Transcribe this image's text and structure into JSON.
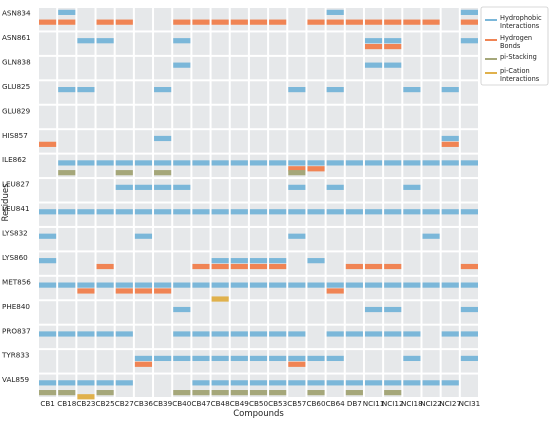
{
  "chart_data": {
    "type": "heatmap",
    "title": "",
    "xlabel": "Compounds",
    "ylabel": "Residues",
    "grid": true,
    "legend_placement": "top-right",
    "compounds": [
      "CB1",
      "CB18",
      "CB23",
      "CB25",
      "CB27",
      "CB36",
      "CB39",
      "CB40",
      "CB47",
      "CB48",
      "CB49",
      "CB50",
      "CB53",
      "CB57",
      "CB60",
      "CB64",
      "DB7",
      "NCI11",
      "NCI12",
      "NCI18",
      "NCI22",
      "NCI27",
      "NCI31"
    ],
    "residues": [
      "ASN834",
      "ASN861",
      "GLN838",
      "GLU825",
      "GLU829",
      "HIS857",
      "ILE862",
      "LEU827",
      "LEU841",
      "LYS832",
      "LYS860",
      "MET856",
      "PHE840",
      "PRO837",
      "TYR833",
      "VAL859"
    ],
    "interaction_types": [
      {
        "name": "Hydrophobic\nInteractions",
        "color": "#7bb7d9"
      },
      {
        "name": "Hydrogen\nBonds",
        "color": "#f08454"
      },
      {
        "name": "pi-Stacking",
        "color": "#a5a77a"
      },
      {
        "name": "pi-Cation\nInteractions",
        "color": "#e0b14c"
      }
    ],
    "series": [
      {
        "name": "Hydrophobic",
        "points": [
          [
            "CB18",
            "ASN834"
          ],
          [
            "CB64",
            "ASN834"
          ],
          [
            "NCI31",
            "ASN834"
          ],
          [
            "CB23",
            "ASN861"
          ],
          [
            "CB25",
            "ASN861"
          ],
          [
            "CB40",
            "ASN861"
          ],
          [
            "NCI11",
            "ASN861"
          ],
          [
            "NCI12",
            "ASN861"
          ],
          [
            "NCI31",
            "ASN861"
          ],
          [
            "CB40",
            "GLN838"
          ],
          [
            "NCI11",
            "GLN838"
          ],
          [
            "NCI12",
            "GLN838"
          ],
          [
            "CB18",
            "GLU825"
          ],
          [
            "CB23",
            "GLU825"
          ],
          [
            "CB39",
            "GLU825"
          ],
          [
            "CB57",
            "GLU825"
          ],
          [
            "CB64",
            "GLU825"
          ],
          [
            "NCI18",
            "GLU825"
          ],
          [
            "NCI27",
            "GLU825"
          ],
          [
            "CB39",
            "HIS857"
          ],
          [
            "NCI27",
            "HIS857"
          ],
          [
            "CB18",
            "ILE862"
          ],
          [
            "CB23",
            "ILE862"
          ],
          [
            "CB25",
            "ILE862"
          ],
          [
            "CB27",
            "ILE862"
          ],
          [
            "CB36",
            "ILE862"
          ],
          [
            "CB39",
            "ILE862"
          ],
          [
            "CB40",
            "ILE862"
          ],
          [
            "CB47",
            "ILE862"
          ],
          [
            "CB48",
            "ILE862"
          ],
          [
            "CB49",
            "ILE862"
          ],
          [
            "CB50",
            "ILE862"
          ],
          [
            "CB53",
            "ILE862"
          ],
          [
            "CB57",
            "ILE862"
          ],
          [
            "CB60",
            "ILE862"
          ],
          [
            "CB64",
            "ILE862"
          ],
          [
            "DB7",
            "ILE862"
          ],
          [
            "NCI11",
            "ILE862"
          ],
          [
            "NCI12",
            "ILE862"
          ],
          [
            "NCI18",
            "ILE862"
          ],
          [
            "NCI22",
            "ILE862"
          ],
          [
            "NCI27",
            "ILE862"
          ],
          [
            "NCI31",
            "ILE862"
          ],
          [
            "CB27",
            "LEU827"
          ],
          [
            "CB36",
            "LEU827"
          ],
          [
            "CB39",
            "LEU827"
          ],
          [
            "CB40",
            "LEU827"
          ],
          [
            "CB57",
            "LEU827"
          ],
          [
            "CB64",
            "LEU827"
          ],
          [
            "NCI18",
            "LEU827"
          ],
          [
            "CB1",
            "LEU841"
          ],
          [
            "CB18",
            "LEU841"
          ],
          [
            "CB23",
            "LEU841"
          ],
          [
            "CB25",
            "LEU841"
          ],
          [
            "CB27",
            "LEU841"
          ],
          [
            "CB36",
            "LEU841"
          ],
          [
            "CB39",
            "LEU841"
          ],
          [
            "CB40",
            "LEU841"
          ],
          [
            "CB47",
            "LEU841"
          ],
          [
            "CB48",
            "LEU841"
          ],
          [
            "CB49",
            "LEU841"
          ],
          [
            "CB50",
            "LEU841"
          ],
          [
            "CB53",
            "LEU841"
          ],
          [
            "CB57",
            "LEU841"
          ],
          [
            "CB60",
            "LEU841"
          ],
          [
            "CB64",
            "LEU841"
          ],
          [
            "DB7",
            "LEU841"
          ],
          [
            "NCI11",
            "LEU841"
          ],
          [
            "NCI12",
            "LEU841"
          ],
          [
            "NCI18",
            "LEU841"
          ],
          [
            "NCI22",
            "LEU841"
          ],
          [
            "NCI27",
            "LEU841"
          ],
          [
            "NCI31",
            "LEU841"
          ],
          [
            "CB1",
            "LYS832"
          ],
          [
            "CB36",
            "LYS832"
          ],
          [
            "CB57",
            "LYS832"
          ],
          [
            "NCI22",
            "LYS832"
          ],
          [
            "CB1",
            "LYS860"
          ],
          [
            "CB48",
            "LYS860"
          ],
          [
            "CB49",
            "LYS860"
          ],
          [
            "CB50",
            "LYS860"
          ],
          [
            "CB53",
            "LYS860"
          ],
          [
            "CB60",
            "LYS860"
          ],
          [
            "CB1",
            "MET856"
          ],
          [
            "CB18",
            "MET856"
          ],
          [
            "CB23",
            "MET856"
          ],
          [
            "CB25",
            "MET856"
          ],
          [
            "CB27",
            "MET856"
          ],
          [
            "CB36",
            "MET856"
          ],
          [
            "CB39",
            "MET856"
          ],
          [
            "CB40",
            "MET856"
          ],
          [
            "CB47",
            "MET856"
          ],
          [
            "CB48",
            "MET856"
          ],
          [
            "CB49",
            "MET856"
          ],
          [
            "CB50",
            "MET856"
          ],
          [
            "CB53",
            "MET856"
          ],
          [
            "CB57",
            "MET856"
          ],
          [
            "CB60",
            "MET856"
          ],
          [
            "CB64",
            "MET856"
          ],
          [
            "DB7",
            "MET856"
          ],
          [
            "NCI11",
            "MET856"
          ],
          [
            "NCI12",
            "MET856"
          ],
          [
            "NCI18",
            "MET856"
          ],
          [
            "NCI22",
            "MET856"
          ],
          [
            "NCI27",
            "MET856"
          ],
          [
            "NCI31",
            "MET856"
          ],
          [
            "CB40",
            "PHE840"
          ],
          [
            "NCI11",
            "PHE840"
          ],
          [
            "NCI12",
            "PHE840"
          ],
          [
            "NCI31",
            "PHE840"
          ],
          [
            "CB1",
            "PRO837"
          ],
          [
            "CB18",
            "PRO837"
          ],
          [
            "CB23",
            "PRO837"
          ],
          [
            "CB25",
            "PRO837"
          ],
          [
            "CB27",
            "PRO837"
          ],
          [
            "CB40",
            "PRO837"
          ],
          [
            "CB47",
            "PRO837"
          ],
          [
            "CB48",
            "PRO837"
          ],
          [
            "CB49",
            "PRO837"
          ],
          [
            "CB50",
            "PRO837"
          ],
          [
            "CB53",
            "PRO837"
          ],
          [
            "CB57",
            "PRO837"
          ],
          [
            "CB64",
            "PRO837"
          ],
          [
            "DB7",
            "PRO837"
          ],
          [
            "NCI11",
            "PRO837"
          ],
          [
            "NCI12",
            "PRO837"
          ],
          [
            "NCI18",
            "PRO837"
          ],
          [
            "NCI27",
            "PRO837"
          ],
          [
            "NCI31",
            "PRO837"
          ],
          [
            "CB36",
            "TYR833"
          ],
          [
            "CB39",
            "TYR833"
          ],
          [
            "CB40",
            "TYR833"
          ],
          [
            "CB47",
            "TYR833"
          ],
          [
            "CB48",
            "TYR833"
          ],
          [
            "CB49",
            "TYR833"
          ],
          [
            "CB50",
            "TYR833"
          ],
          [
            "CB53",
            "TYR833"
          ],
          [
            "CB57",
            "TYR833"
          ],
          [
            "CB60",
            "TYR833"
          ],
          [
            "CB64",
            "TYR833"
          ],
          [
            "NCI18",
            "TYR833"
          ],
          [
            "NCI31",
            "TYR833"
          ],
          [
            "CB1",
            "VAL859"
          ],
          [
            "CB18",
            "VAL859"
          ],
          [
            "CB23",
            "VAL859"
          ],
          [
            "CB25",
            "VAL859"
          ],
          [
            "CB27",
            "VAL859"
          ],
          [
            "CB47",
            "VAL859"
          ],
          [
            "CB48",
            "VAL859"
          ],
          [
            "CB49",
            "VAL859"
          ],
          [
            "CB50",
            "VAL859"
          ],
          [
            "CB53",
            "VAL859"
          ],
          [
            "CB57",
            "VAL859"
          ],
          [
            "CB60",
            "VAL859"
          ],
          [
            "CB64",
            "VAL859"
          ],
          [
            "DB7",
            "VAL859"
          ],
          [
            "NCI11",
            "VAL859"
          ],
          [
            "NCI12",
            "VAL859"
          ],
          [
            "NCI18",
            "VAL859"
          ],
          [
            "NCI22",
            "VAL859"
          ],
          [
            "NCI27",
            "VAL859"
          ]
        ]
      },
      {
        "name": "Hydrogen Bonds",
        "points": [
          [
            "CB1",
            "ASN834"
          ],
          [
            "CB18",
            "ASN834"
          ],
          [
            "CB25",
            "ASN834"
          ],
          [
            "CB27",
            "ASN834"
          ],
          [
            "CB40",
            "ASN834"
          ],
          [
            "CB47",
            "ASN834"
          ],
          [
            "CB48",
            "ASN834"
          ],
          [
            "CB49",
            "ASN834"
          ],
          [
            "CB50",
            "ASN834"
          ],
          [
            "CB53",
            "ASN834"
          ],
          [
            "CB60",
            "ASN834"
          ],
          [
            "CB64",
            "ASN834"
          ],
          [
            "DB7",
            "ASN834"
          ],
          [
            "NCI11",
            "ASN834"
          ],
          [
            "NCI12",
            "ASN834"
          ],
          [
            "NCI18",
            "ASN834"
          ],
          [
            "NCI22",
            "ASN834"
          ],
          [
            "NCI31",
            "ASN834"
          ],
          [
            "NCI11",
            "ASN861"
          ],
          [
            "NCI12",
            "ASN861"
          ],
          [
            "CB1",
            "HIS857"
          ],
          [
            "NCI27",
            "HIS857"
          ],
          [
            "CB60",
            "ILE862"
          ],
          [
            "CB57",
            "ILE862"
          ],
          [
            "CB25",
            "LYS860"
          ],
          [
            "CB47",
            "LYS860"
          ],
          [
            "CB48",
            "LYS860"
          ],
          [
            "CB49",
            "LYS860"
          ],
          [
            "CB50",
            "LYS860"
          ],
          [
            "CB53",
            "LYS860"
          ],
          [
            "DB7",
            "LYS860"
          ],
          [
            "NCI11",
            "LYS860"
          ],
          [
            "NCI12",
            "LYS860"
          ],
          [
            "NCI31",
            "LYS860"
          ],
          [
            "CB23",
            "MET856"
          ],
          [
            "CB27",
            "MET856"
          ],
          [
            "CB36",
            "MET856"
          ],
          [
            "CB39",
            "MET856"
          ],
          [
            "CB64",
            "MET856"
          ],
          [
            "CB36",
            "TYR833"
          ],
          [
            "CB57",
            "TYR833"
          ]
        ]
      },
      {
        "name": "pi-Stacking",
        "points": [
          [
            "CB18",
            "ILE862"
          ],
          [
            "CB27",
            "ILE862"
          ],
          [
            "CB39",
            "ILE862"
          ],
          [
            "CB57",
            "ILE862"
          ],
          [
            "CB1",
            "VAL859"
          ],
          [
            "CB18",
            "VAL859"
          ],
          [
            "CB25",
            "VAL859"
          ],
          [
            "CB40",
            "VAL859"
          ],
          [
            "CB47",
            "VAL859"
          ],
          [
            "CB48",
            "VAL859"
          ],
          [
            "CB49",
            "VAL859"
          ],
          [
            "CB50",
            "VAL859"
          ],
          [
            "CB53",
            "VAL859"
          ],
          [
            "CB60",
            "VAL859"
          ],
          [
            "DB7",
            "VAL859"
          ],
          [
            "NCI12",
            "VAL859"
          ]
        ]
      },
      {
        "name": "pi-Cation",
        "points": [
          [
            "CB48",
            "MET856"
          ],
          [
            "CB23",
            "VAL859"
          ]
        ]
      }
    ]
  }
}
